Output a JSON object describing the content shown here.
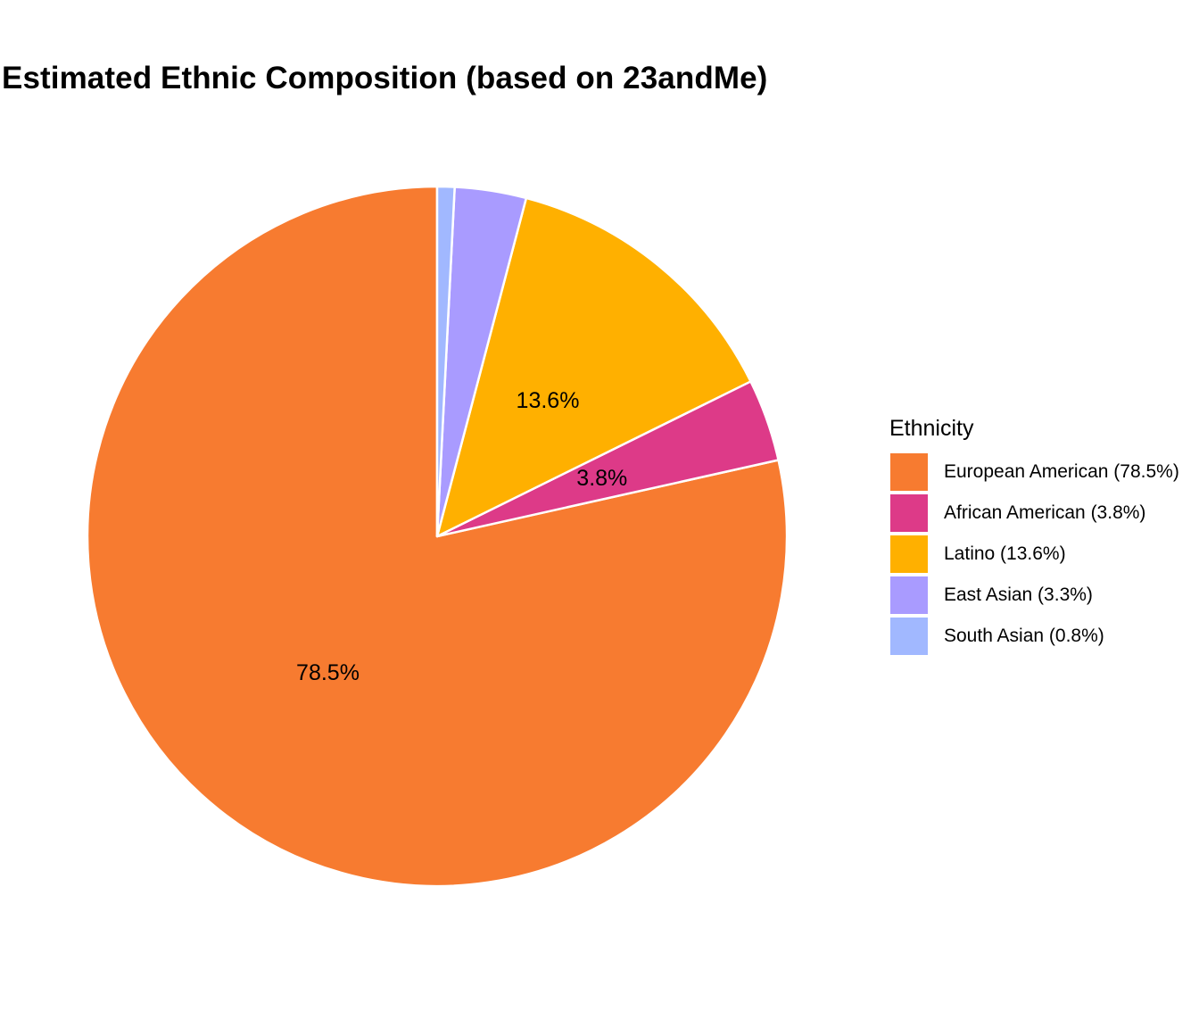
{
  "chart_data": {
    "type": "pie",
    "title": "Estimated Ethnic Composition (based on 23andMe)",
    "legend_title": "Ethnicity",
    "legend_position": "right",
    "start_angle": "12 o'clock",
    "direction": "counterclockwise",
    "slices": [
      {
        "name": "European American",
        "value": 78.5,
        "label": "78.5%",
        "legend_label": "European American (78.5%)",
        "color": "#F77B30"
      },
      {
        "name": "African American",
        "value": 3.8,
        "label": "3.8%",
        "legend_label": "African American (3.8%)",
        "color": "#DD3A88"
      },
      {
        "name": "Latino",
        "value": 13.6,
        "label": "13.6%",
        "legend_label": "Latino (13.6%)",
        "color": "#FFB000"
      },
      {
        "name": "East Asian",
        "value": 3.3,
        "label": "",
        "legend_label": "East Asian (3.3%)",
        "color": "#A99BFF"
      },
      {
        "name": "South Asian",
        "value": 0.8,
        "label": "",
        "legend_label": "South Asian (0.8%)",
        "color": "#A1B8FF"
      }
    ]
  }
}
